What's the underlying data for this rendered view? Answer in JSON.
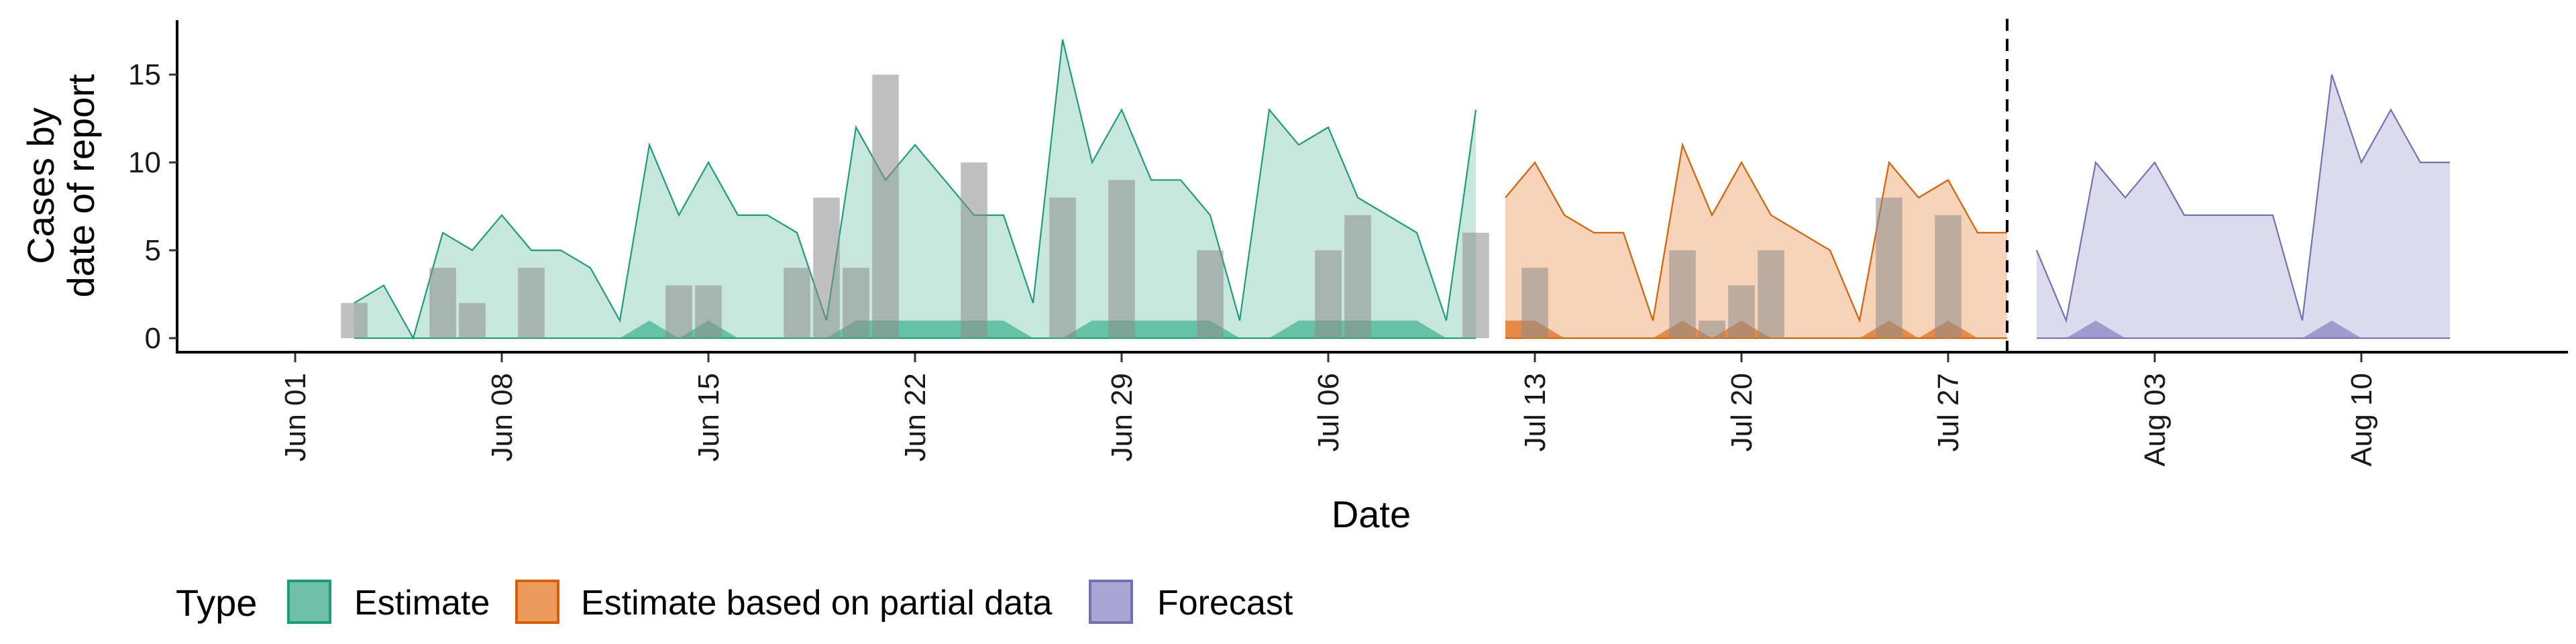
{
  "chart_data": {
    "type": "area",
    "xlabel": "Date",
    "ylabel_lines": [
      "Cases by",
      "date of report"
    ],
    "ylim": [
      -0.8,
      18.1
    ],
    "yticks": [
      0,
      5,
      10,
      15
    ],
    "xlim": [
      "2021-05-28",
      "2021-08-17"
    ],
    "xticks": [
      {
        "date": "2021-06-01",
        "label": "Jun 01"
      },
      {
        "date": "2021-06-08",
        "label": "Jun 08"
      },
      {
        "date": "2021-06-15",
        "label": "Jun 15"
      },
      {
        "date": "2021-06-22",
        "label": "Jun 22"
      },
      {
        "date": "2021-06-29",
        "label": "Jun 29"
      },
      {
        "date": "2021-07-06",
        "label": "Jul 06"
      },
      {
        "date": "2021-07-13",
        "label": "Jul 13"
      },
      {
        "date": "2021-07-20",
        "label": "Jul 20"
      },
      {
        "date": "2021-07-27",
        "label": "Jul 27"
      },
      {
        "date": "2021-08-03",
        "label": "Aug 03"
      },
      {
        "date": "2021-08-10",
        "label": "Aug 10"
      }
    ],
    "forecast_line_date": "2021-07-29",
    "legend": {
      "title": "Type",
      "position": "bottom",
      "items": [
        {
          "key": "estimate",
          "label": "Estimate",
          "fill": "#6fc0a6",
          "stroke": "#1b9e77"
        },
        {
          "key": "partial",
          "label": "Estimate based on partial data",
          "fill": "#eb9b5d",
          "stroke": "#d95f02"
        },
        {
          "key": "forecast",
          "label": "Forecast",
          "fill": "#aaa6d4",
          "stroke": "#7570b3"
        }
      ]
    },
    "series": [
      {
        "key": "estimate",
        "color": "#1b9e77",
        "fill": "#c8e7dc",
        "inner_fill": "#66c2a5",
        "start": "2021-06-03",
        "upper": [
          2,
          3,
          0,
          6,
          5,
          7,
          5,
          5,
          4,
          1,
          11,
          7,
          10,
          7,
          7,
          6,
          1,
          12,
          9,
          11,
          9,
          7,
          7,
          2,
          17,
          10,
          13,
          9,
          9,
          7,
          1,
          13,
          11,
          12,
          8,
          7,
          6,
          1,
          13
        ],
        "inner": [
          0,
          0,
          0,
          0,
          0,
          0,
          0,
          0,
          0,
          0,
          1,
          0,
          1,
          0,
          0,
          0,
          0,
          1,
          1,
          1,
          1,
          1,
          1,
          0,
          0,
          1,
          1,
          1,
          1,
          1,
          0,
          0,
          1,
          1,
          1,
          1,
          1,
          0,
          0
        ]
      },
      {
        "key": "partial",
        "color": "#d95f02",
        "fill": "#f6d3b9",
        "inner_fill": "#e68a4a",
        "start": "2021-07-12",
        "upper": [
          8,
          10,
          7,
          6,
          6,
          1,
          11,
          7,
          10,
          7,
          6,
          5,
          1,
          10,
          8,
          9,
          6,
          6
        ],
        "inner": [
          1,
          1,
          0,
          0,
          0,
          0,
          1,
          0,
          1,
          0,
          0,
          0,
          0,
          1,
          0,
          1,
          0,
          0
        ]
      },
      {
        "key": "forecast",
        "color": "#7570b3",
        "fill": "#dcdbed",
        "inner_fill": "#9f9bcc",
        "start": "2021-07-30",
        "upper": [
          5,
          1,
          10,
          8,
          10,
          7,
          7,
          7,
          7,
          1,
          15,
          10,
          13,
          10,
          10
        ],
        "inner": [
          0,
          0,
          1,
          0,
          0,
          0,
          0,
          0,
          0,
          0,
          1,
          0,
          0,
          0,
          0
        ]
      }
    ],
    "reported_cases": {
      "color": "#8c8c8c",
      "points": [
        {
          "date": "2021-06-03",
          "value": 2
        },
        {
          "date": "2021-06-06",
          "value": 4
        },
        {
          "date": "2021-06-07",
          "value": 2
        },
        {
          "date": "2021-06-09",
          "value": 4
        },
        {
          "date": "2021-06-14",
          "value": 3
        },
        {
          "date": "2021-06-15",
          "value": 3
        },
        {
          "date": "2021-06-18",
          "value": 4
        },
        {
          "date": "2021-06-19",
          "value": 8
        },
        {
          "date": "2021-06-20",
          "value": 4
        },
        {
          "date": "2021-06-21",
          "value": 15
        },
        {
          "date": "2021-06-24",
          "value": 10
        },
        {
          "date": "2021-06-27",
          "value": 8
        },
        {
          "date": "2021-06-29",
          "value": 9
        },
        {
          "date": "2021-07-02",
          "value": 5
        },
        {
          "date": "2021-07-06",
          "value": 5
        },
        {
          "date": "2021-07-07",
          "value": 7
        },
        {
          "date": "2021-07-11",
          "value": 6
        },
        {
          "date": "2021-07-13",
          "value": 4
        },
        {
          "date": "2021-07-18",
          "value": 5
        },
        {
          "date": "2021-07-19",
          "value": 1
        },
        {
          "date": "2021-07-20",
          "value": 3
        },
        {
          "date": "2021-07-21",
          "value": 5
        },
        {
          "date": "2021-07-25",
          "value": 8
        },
        {
          "date": "2021-07-27",
          "value": 7
        }
      ]
    }
  }
}
